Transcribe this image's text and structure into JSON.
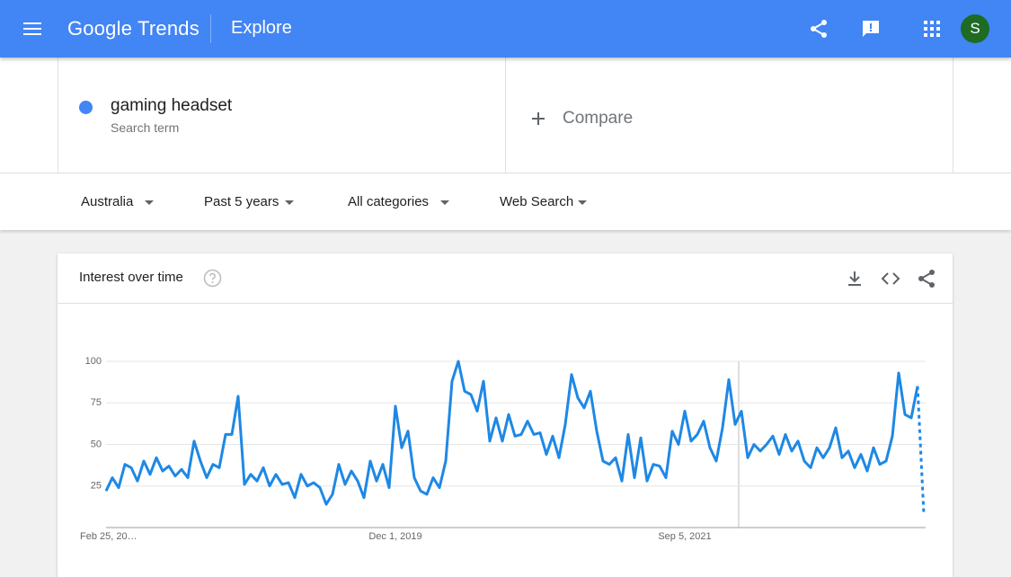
{
  "header": {
    "brand": "Google Trends",
    "page": "Explore",
    "avatar": "S"
  },
  "search": {
    "term": "gaming headset",
    "subtitle": "Search term",
    "compare": "Compare"
  },
  "filters": [
    "Australia",
    "Past 5 years",
    "All categories",
    "Web Search"
  ],
  "card": {
    "title": "Interest over time"
  },
  "chart_data": {
    "type": "line",
    "categories": [
      "Feb 25, 20…",
      null,
      null,
      null,
      null,
      null,
      null,
      null,
      null,
      null,
      null,
      null,
      null,
      null,
      null,
      null,
      null,
      null,
      null,
      null,
      null,
      null,
      null,
      null,
      null,
      null,
      null,
      null,
      null,
      null,
      null,
      null,
      null,
      null,
      null,
      null,
      null,
      null,
      null,
      null,
      null,
      null,
      null,
      null,
      null,
      null,
      "Dec 1, 2019",
      null,
      null,
      null,
      null,
      null,
      null,
      null,
      null,
      null,
      null,
      null,
      null,
      null,
      null,
      null,
      null,
      null,
      null,
      null,
      null,
      null,
      null,
      null,
      null,
      null,
      null,
      null,
      null,
      null,
      null,
      null,
      null,
      null,
      null,
      null,
      null,
      null,
      null,
      null,
      null,
      null,
      null,
      null,
      null,
      null,
      "Sep 5, 2021",
      null,
      null,
      null,
      null,
      null,
      null,
      null,
      null,
      null,
      null,
      null,
      null,
      null,
      null,
      null,
      null,
      null,
      null,
      null,
      null,
      null,
      null,
      null,
      null,
      null,
      null,
      null,
      null,
      null,
      null,
      null,
      null,
      null,
      null,
      null,
      null,
      null,
      null
    ],
    "series": [
      {
        "name": "gaming headset",
        "color": "#1e88e5",
        "values": [
          22,
          30,
          24,
          38,
          36,
          28,
          40,
          32,
          42,
          34,
          37,
          31,
          35,
          30,
          52,
          40,
          30,
          38,
          36,
          56,
          56,
          79,
          26,
          32,
          28,
          36,
          25,
          32,
          26,
          27,
          18,
          32,
          25,
          27,
          24,
          14,
          20,
          38,
          26,
          34,
          28,
          18,
          40,
          28,
          38,
          24,
          73,
          48,
          58,
          30,
          22,
          20,
          30,
          24,
          40,
          88,
          100,
          82,
          80,
          70,
          88,
          52,
          66,
          52,
          68,
          55,
          56,
          64,
          56,
          57,
          44,
          55,
          42,
          62,
          92,
          78,
          72,
          82,
          58,
          40,
          38,
          42,
          28,
          56,
          30,
          54,
          28,
          38,
          37,
          30,
          58,
          50,
          70,
          52,
          56,
          64,
          48,
          40,
          60,
          89,
          62,
          70,
          42,
          50,
          46,
          50,
          55,
          44,
          56,
          46,
          52,
          40,
          36,
          48,
          42,
          48,
          60,
          42,
          46,
          36,
          44,
          34,
          48,
          38,
          40,
          55,
          93,
          68,
          66,
          85,
          8
        ]
      }
    ],
    "ylim": [
      0,
      100
    ],
    "yticks": [
      25,
      50,
      75,
      100
    ],
    "grid": true
  }
}
